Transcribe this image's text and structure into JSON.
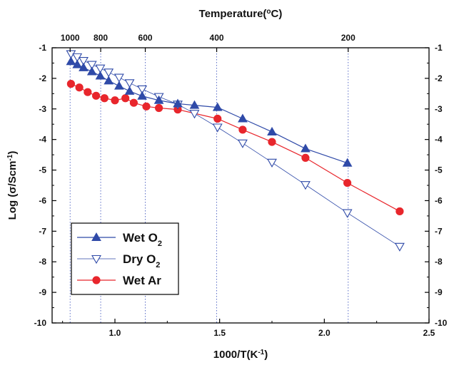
{
  "chart_data": {
    "type": "line",
    "title": "",
    "xlabel": "1000/T(K",
    "xlabel_sup": "-1",
    "xlabel_suffix": ")",
    "ylabel": "Log (σ/Scm",
    "ylabel_sup": "-1",
    "ylabel_suffix": ")",
    "top_axis_label": "Temperature(",
    "top_axis_label_deg": "o",
    "top_axis_label_suffix": "C)",
    "xlim": [
      0.7,
      2.5
    ],
    "ylim": [
      -10,
      -1
    ],
    "x_ticks": [
      {
        "v": 1.0,
        "label": "1.0"
      },
      {
        "v": 1.5,
        "label": "1.5"
      },
      {
        "v": 2.0,
        "label": "2.0"
      },
      {
        "v": 2.5,
        "label": "2.5"
      }
    ],
    "y_ticks": [
      {
        "v": -1,
        "label": "-1"
      },
      {
        "v": -2,
        "label": "-2"
      },
      {
        "v": -3,
        "label": "-3"
      },
      {
        "v": -4,
        "label": "-4"
      },
      {
        "v": -5,
        "label": "-5"
      },
      {
        "v": -6,
        "label": "-6"
      },
      {
        "v": -7,
        "label": "-7"
      },
      {
        "v": -8,
        "label": "-8"
      },
      {
        "v": -9,
        "label": "-9"
      },
      {
        "v": -10,
        "label": "-10"
      }
    ],
    "top_ticks": [
      {
        "v": 0.786,
        "label": "1000"
      },
      {
        "v": 0.932,
        "label": "800"
      },
      {
        "v": 1.145,
        "label": "600"
      },
      {
        "v": 1.486,
        "label": "400"
      },
      {
        "v": 2.114,
        "label": "200"
      }
    ],
    "grid": false,
    "legend_position": "bottom-left",
    "series": [
      {
        "name": "Wet O",
        "name_sub": "2",
        "color": "#2f4aa8",
        "marker": "triangle-up-filled",
        "x": [
          0.79,
          0.82,
          0.85,
          0.89,
          0.93,
          0.97,
          1.02,
          1.07,
          1.13,
          1.21,
          1.3,
          1.38,
          1.49,
          1.61,
          1.75,
          1.91,
          2.11
        ],
        "y": [
          -1.45,
          -1.55,
          -1.65,
          -1.78,
          -1.92,
          -2.08,
          -2.25,
          -2.42,
          -2.58,
          -2.72,
          -2.83,
          -2.88,
          -2.95,
          -3.32,
          -3.75,
          -4.3,
          -4.77
        ]
      },
      {
        "name": "Dry O",
        "name_sub": "2",
        "color": "#2f4aa8",
        "marker": "triangle-down-open",
        "x": [
          0.79,
          0.82,
          0.85,
          0.89,
          0.93,
          0.97,
          1.02,
          1.07,
          1.13,
          1.21,
          1.3,
          1.38,
          1.49,
          1.61,
          1.75,
          1.91,
          2.11,
          2.36
        ],
        "y": [
          -1.2,
          -1.3,
          -1.42,
          -1.55,
          -1.67,
          -1.8,
          -1.97,
          -2.15,
          -2.35,
          -2.6,
          -2.85,
          -3.15,
          -3.6,
          -4.12,
          -4.75,
          -5.48,
          -6.4,
          -7.5
        ]
      },
      {
        "name": "Wet Ar",
        "color": "#e8262c",
        "marker": "circle-filled",
        "x": [
          0.79,
          0.83,
          0.87,
          0.91,
          0.95,
          1.0,
          1.05,
          1.09,
          1.15,
          1.21,
          1.3,
          1.49,
          1.61,
          1.75,
          1.91,
          2.11,
          2.36
        ],
        "y": [
          -2.18,
          -2.3,
          -2.45,
          -2.57,
          -2.65,
          -2.72,
          -2.65,
          -2.8,
          -2.92,
          -2.97,
          -3.02,
          -3.32,
          -3.68,
          -4.08,
          -4.6,
          -5.42,
          -6.35
        ]
      }
    ]
  }
}
